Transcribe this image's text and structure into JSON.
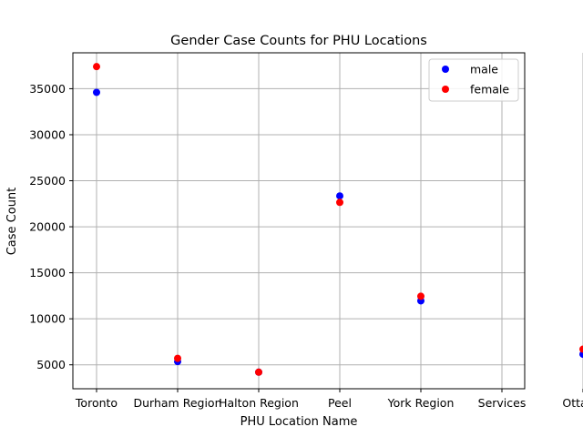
{
  "chart_data": {
    "type": "scatter",
    "title": "Gender Case Counts for PHU Locations",
    "xlabel": "PHU Location Name",
    "ylabel": "Case Count",
    "categories": [
      "Toronto",
      "Durham Region",
      "Halton Region",
      "Peel",
      "York Region",
      "Services",
      "Ottawa"
    ],
    "series": [
      {
        "name": "male",
        "color": "#0000ff",
        "points": [
          {
            "x": "Toronto",
            "y": 34600
          },
          {
            "x": "Durham Region",
            "y": 5350
          },
          {
            "x": "Halton Region",
            "y": 4200
          },
          {
            "x": "Peel",
            "y": 23350
          },
          {
            "x": "York Region",
            "y": 11950
          },
          {
            "x": "Ottawa",
            "y": 6150
          }
        ]
      },
      {
        "name": "female",
        "color": "#ff0000",
        "points": [
          {
            "x": "Toronto",
            "y": 37400
          },
          {
            "x": "Durham Region",
            "y": 5700
          },
          {
            "x": "Halton Region",
            "y": 4200
          },
          {
            "x": "Peel",
            "y": 22650
          },
          {
            "x": "York Region",
            "y": 12450
          },
          {
            "x": "Ottawa",
            "y": 6700
          }
        ]
      }
    ],
    "yticks": [
      5000,
      10000,
      15000,
      20000,
      25000,
      30000,
      35000
    ],
    "ylim": [
      2400,
      38900
    ],
    "grid": true,
    "legend_position": "top-right"
  }
}
